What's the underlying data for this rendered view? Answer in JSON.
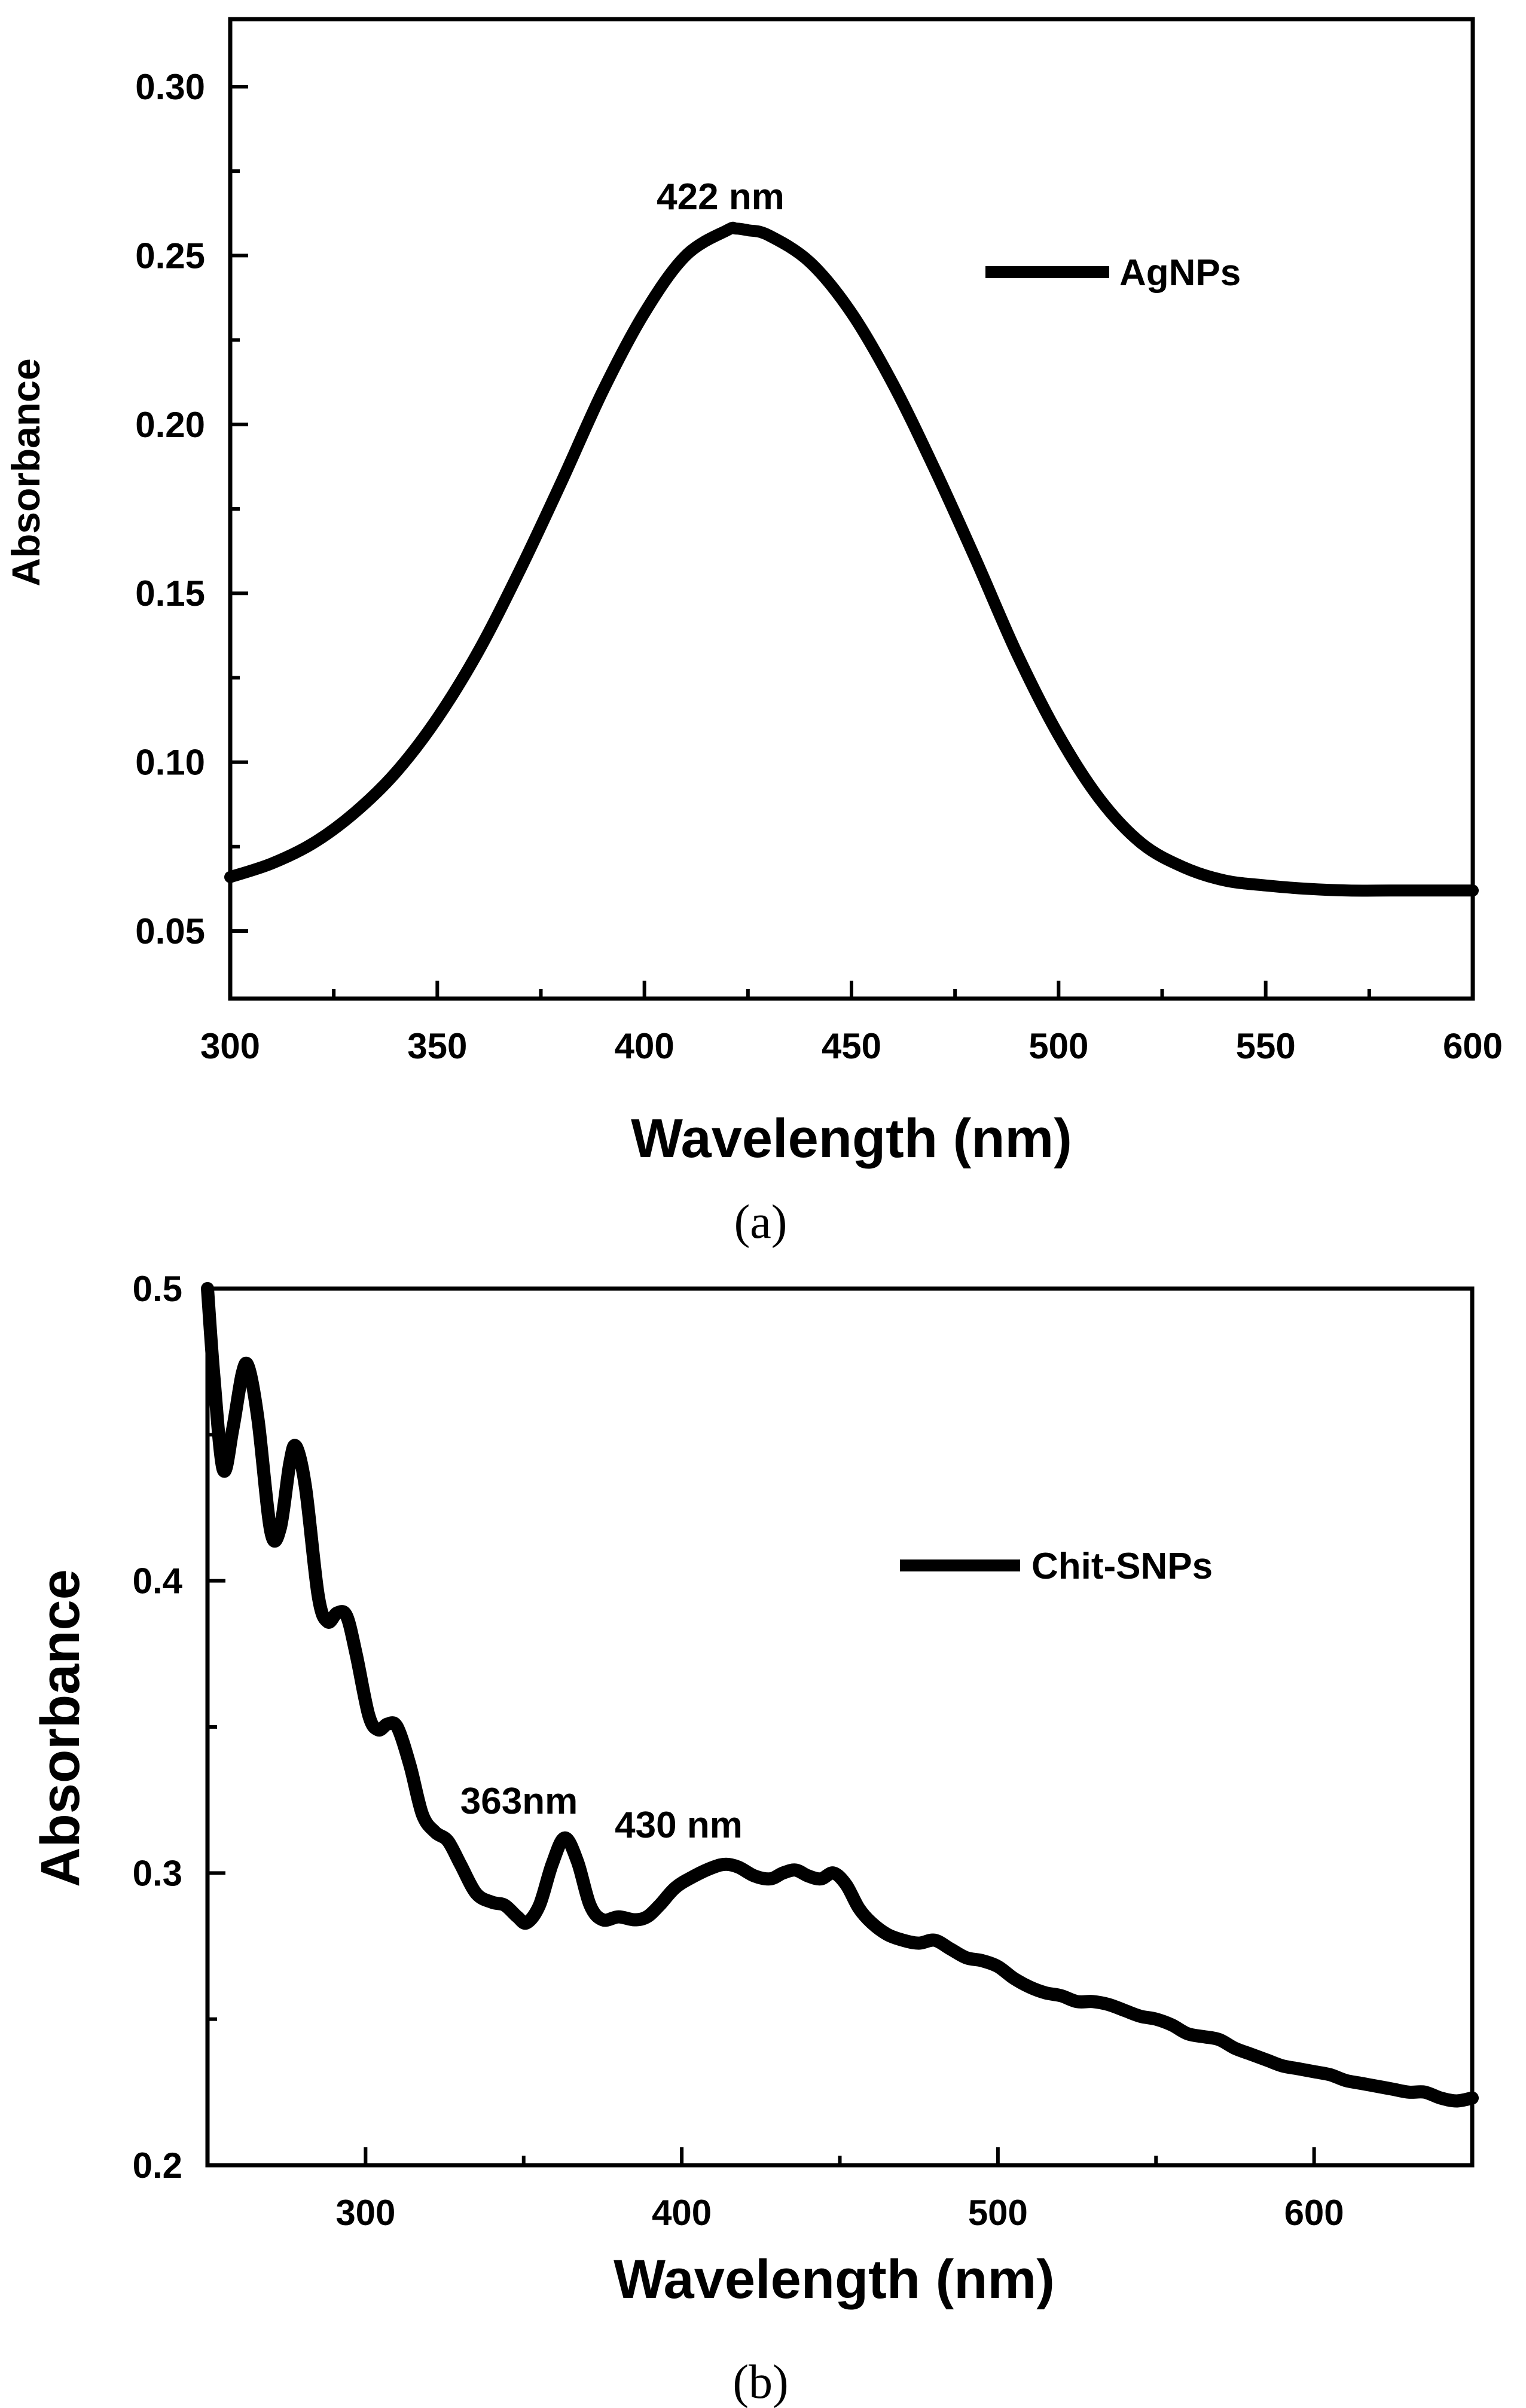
{
  "chart_data": [
    {
      "type": "line",
      "panel_label": "(a)",
      "xlabel": "Wavelength (nm)",
      "ylabel": "Absorbance",
      "xlim": [
        300,
        600
      ],
      "ylim": [
        0.03,
        0.32
      ],
      "xticks": [
        300,
        350,
        400,
        450,
        500,
        550,
        600
      ],
      "xtick_labels": [
        "300",
        "350",
        "400",
        "450",
        "500",
        "550",
        "600"
      ],
      "yticks": [
        0.05,
        0.1,
        0.15,
        0.2,
        0.25,
        0.3
      ],
      "ytick_labels": [
        "0.05",
        "0.10",
        "0.15",
        "0.20",
        "0.25",
        "0.30"
      ],
      "legend": {
        "label": "AgNPs",
        "position": "top-right"
      },
      "annotations": [
        {
          "text": "422 nm",
          "x": 422,
          "y": 0.268
        }
      ],
      "series": [
        {
          "name": "AgNPs",
          "color": "#000000",
          "x": [
            300,
            310,
            320,
            330,
            340,
            350,
            360,
            370,
            380,
            390,
            400,
            410,
            420,
            422,
            425,
            430,
            440,
            450,
            460,
            470,
            480,
            490,
            500,
            510,
            520,
            530,
            540,
            550,
            560,
            570,
            580,
            590,
            600
          ],
          "y": [
            0.066,
            0.07,
            0.076,
            0.085,
            0.097,
            0.113,
            0.133,
            0.157,
            0.183,
            0.21,
            0.233,
            0.25,
            0.2575,
            0.258,
            0.2575,
            0.256,
            0.248,
            0.233,
            0.212,
            0.187,
            0.16,
            0.132,
            0.108,
            0.089,
            0.076,
            0.069,
            0.065,
            0.0635,
            0.0625,
            0.062,
            0.062,
            0.062,
            0.062
          ]
        }
      ]
    },
    {
      "type": "line",
      "panel_label": "(b)",
      "xlabel": "Wavelength (nm)",
      "ylabel": "Absorbance",
      "xlim": [
        250,
        650
      ],
      "ylim": [
        0.2,
        0.5
      ],
      "xticks": [
        300,
        400,
        500,
        600
      ],
      "xtick_labels": [
        "300",
        "400",
        "500",
        "600"
      ],
      "yticks": [
        0.2,
        0.3,
        0.4,
        0.5
      ],
      "ytick_labels": [
        "0.2",
        "0.3",
        "0.4",
        "0.5"
      ],
      "legend": {
        "label": "Chit-SNPs",
        "position": "top-right"
      },
      "annotations": [
        {
          "text": "363nm",
          "x": 363,
          "y": 0.318
        },
        {
          "text": "430 nm",
          "x": 430,
          "y": 0.311
        }
      ],
      "series": [
        {
          "name": "Chit-SNPs",
          "color": "#000000",
          "x": [
            250,
            252,
            255,
            258,
            261,
            263,
            266,
            270,
            273,
            276,
            278,
            281,
            285,
            288,
            291,
            294,
            297,
            301,
            304,
            307,
            310,
            314,
            318,
            322,
            326,
            330,
            335,
            340,
            344,
            348,
            351,
            355,
            359,
            363,
            367,
            371,
            375,
            380,
            385,
            389,
            393,
            398,
            404,
            410,
            414,
            418,
            423,
            428,
            432,
            436,
            440,
            444,
            448,
            452,
            456,
            460,
            465,
            470,
            475,
            480,
            485,
            490,
            495,
            500,
            505,
            510,
            515,
            520,
            525,
            530,
            535,
            540,
            545,
            550,
            555,
            560,
            565,
            570,
            575,
            580,
            585,
            590,
            595,
            600,
            605,
            610,
            615,
            620,
            625,
            630,
            635,
            640,
            645,
            650
          ],
          "y": [
            0.5,
            0.47,
            0.438,
            0.452,
            0.471,
            0.473,
            0.455,
            0.417,
            0.418,
            0.44,
            0.446,
            0.432,
            0.395,
            0.386,
            0.389,
            0.388,
            0.375,
            0.354,
            0.349,
            0.351,
            0.35,
            0.337,
            0.32,
            0.314,
            0.311,
            0.303,
            0.293,
            0.29,
            0.289,
            0.285,
            0.283,
            0.289,
            0.303,
            0.312,
            0.304,
            0.289,
            0.284,
            0.285,
            0.284,
            0.285,
            0.289,
            0.295,
            0.299,
            0.302,
            0.303,
            0.302,
            0.299,
            0.298,
            0.3,
            0.301,
            0.299,
            0.298,
            0.3,
            0.296,
            0.288,
            0.283,
            0.279,
            0.277,
            0.276,
            0.277,
            0.274,
            0.271,
            0.27,
            0.268,
            0.264,
            0.261,
            0.259,
            0.258,
            0.256,
            0.256,
            0.255,
            0.253,
            0.251,
            0.25,
            0.248,
            0.245,
            0.244,
            0.243,
            0.24,
            0.238,
            0.236,
            0.234,
            0.233,
            0.232,
            0.231,
            0.229,
            0.228,
            0.227,
            0.226,
            0.225,
            0.225,
            0.223,
            0.222,
            0.223
          ]
        }
      ]
    }
  ]
}
